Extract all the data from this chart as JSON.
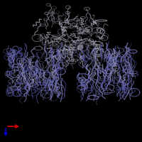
{
  "background_color": "#000000",
  "fig_size": [
    2.0,
    2.0
  ],
  "dpi": 100,
  "arrow_color_x": "#dd0000",
  "arrow_color_y": "#0000cc",
  "gray": "#a8a8b8",
  "blue": "#7878b8",
  "dblue": "#5050a0",
  "lblue": "#9090c8"
}
